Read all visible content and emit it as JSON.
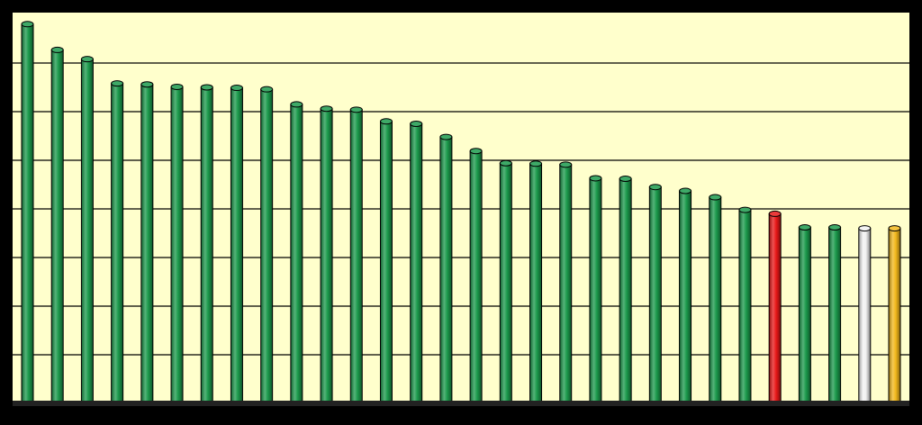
{
  "chart_data": {
    "type": "bar",
    "title": "",
    "xlabel": "",
    "ylabel": "",
    "ylim": [
      0,
      8
    ],
    "grid": true,
    "gridlines": [
      1,
      2,
      3,
      4,
      5,
      6,
      7
    ],
    "colors": {
      "plot_background": "#FFFFCC",
      "frame": "#000000",
      "default_bar": "#1C9A4C",
      "highlight_red": "#E81818",
      "highlight_white": "#F2F2F2",
      "highlight_gold": "#F2B81C"
    },
    "bars": [
      {
        "value": 7.8,
        "color": "default_bar"
      },
      {
        "value": 7.27,
        "color": "default_bar"
      },
      {
        "value": 7.08,
        "color": "default_bar"
      },
      {
        "value": 6.58,
        "color": "default_bar"
      },
      {
        "value": 6.56,
        "color": "default_bar"
      },
      {
        "value": 6.51,
        "color": "default_bar"
      },
      {
        "value": 6.5,
        "color": "default_bar"
      },
      {
        "value": 6.49,
        "color": "default_bar"
      },
      {
        "value": 6.46,
        "color": "default_bar"
      },
      {
        "value": 6.15,
        "color": "default_bar"
      },
      {
        "value": 6.06,
        "color": "default_bar"
      },
      {
        "value": 6.04,
        "color": "default_bar"
      },
      {
        "value": 5.8,
        "color": "default_bar"
      },
      {
        "value": 5.75,
        "color": "default_bar"
      },
      {
        "value": 5.48,
        "color": "default_bar"
      },
      {
        "value": 5.19,
        "color": "default_bar"
      },
      {
        "value": 4.94,
        "color": "default_bar"
      },
      {
        "value": 4.93,
        "color": "default_bar"
      },
      {
        "value": 4.91,
        "color": "default_bar"
      },
      {
        "value": 4.63,
        "color": "default_bar"
      },
      {
        "value": 4.62,
        "color": "default_bar"
      },
      {
        "value": 4.45,
        "color": "default_bar"
      },
      {
        "value": 4.37,
        "color": "default_bar"
      },
      {
        "value": 4.24,
        "color": "default_bar"
      },
      {
        "value": 3.98,
        "color": "default_bar"
      },
      {
        "value": 3.9,
        "color": "highlight_red"
      },
      {
        "value": 3.62,
        "color": "default_bar"
      },
      {
        "value": 3.62,
        "color": "default_bar"
      },
      {
        "value": 3.6,
        "color": "highlight_white"
      },
      {
        "value": 3.6,
        "color": "highlight_gold"
      }
    ]
  }
}
